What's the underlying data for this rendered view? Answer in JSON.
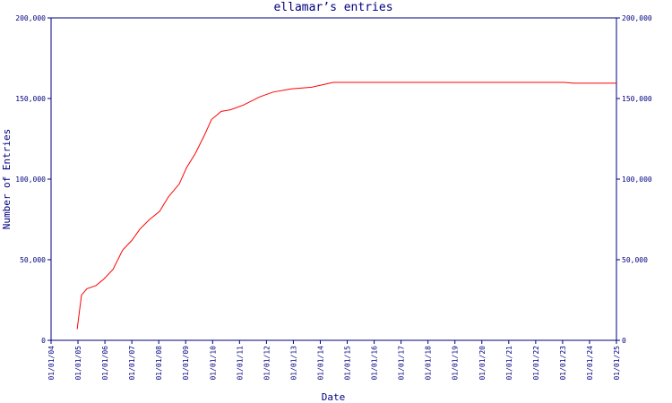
{
  "chart_data": {
    "type": "line",
    "title": "ellamar’s entries",
    "x_label": "Date",
    "y_label": "Number of Entries",
    "x": [
      2004.97,
      2005.13,
      2005.33,
      2005.67,
      2005.96,
      2006.3,
      2006.66,
      2007.0,
      2007.3,
      2007.66,
      2008.03,
      2008.36,
      2008.76,
      2009.03,
      2009.36,
      2009.69,
      2009.96,
      2010.32,
      2010.66,
      2011.15,
      2011.75,
      2012.25,
      2012.92,
      2013.68,
      2014.48,
      2023.07,
      2023.4,
      2025.0
    ],
    "series": [
      {
        "color": "#ff0000",
        "values": [
          7000,
          28000,
          32000,
          34000,
          38000,
          44000,
          56000,
          62000,
          69000,
          75000,
          80000,
          89000,
          97000,
          107000,
          116000,
          127000,
          137000,
          142000,
          143000,
          146000,
          151000,
          154000,
          156000,
          157000,
          160000,
          160000,
          159500,
          159500
        ]
      }
    ],
    "xlim": [
      2004,
      2025
    ],
    "xticks": [
      {
        "value": 2004,
        "label": "01/01/04"
      },
      {
        "value": 2005,
        "label": "01/01/05"
      },
      {
        "value": 2006,
        "label": "01/01/06"
      },
      {
        "value": 2007,
        "label": "01/01/07"
      },
      {
        "value": 2008,
        "label": "01/01/08"
      },
      {
        "value": 2009,
        "label": "01/01/09"
      },
      {
        "value": 2010,
        "label": "01/01/10"
      },
      {
        "value": 2011,
        "label": "01/01/11"
      },
      {
        "value": 2012,
        "label": "01/01/12"
      },
      {
        "value": 2013,
        "label": "01/01/13"
      },
      {
        "value": 2014,
        "label": "01/01/14"
      },
      {
        "value": 2015,
        "label": "01/01/15"
      },
      {
        "value": 2016,
        "label": "01/01/16"
      },
      {
        "value": 2017,
        "label": "01/01/17"
      },
      {
        "value": 2018,
        "label": "01/01/18"
      },
      {
        "value": 2019,
        "label": "01/01/19"
      },
      {
        "value": 2020,
        "label": "01/01/20"
      },
      {
        "value": 2021,
        "label": "01/01/21"
      },
      {
        "value": 2022,
        "label": "01/01/22"
      },
      {
        "value": 2023,
        "label": "01/01/23"
      },
      {
        "value": 2024,
        "label": "01/01/24"
      },
      {
        "value": 2025,
        "label": "01/01/25"
      }
    ],
    "ylim": [
      0,
      200000
    ],
    "yticks": [
      0,
      {
        "value": 50000,
        "label": "50,000"
      },
      {
        "value": 100000,
        "label": "100,000"
      },
      {
        "value": 150000,
        "label": "150,000"
      },
      {
        "value": 200000,
        "label": "200,000"
      }
    ],
    "axis_color": "#000080"
  }
}
